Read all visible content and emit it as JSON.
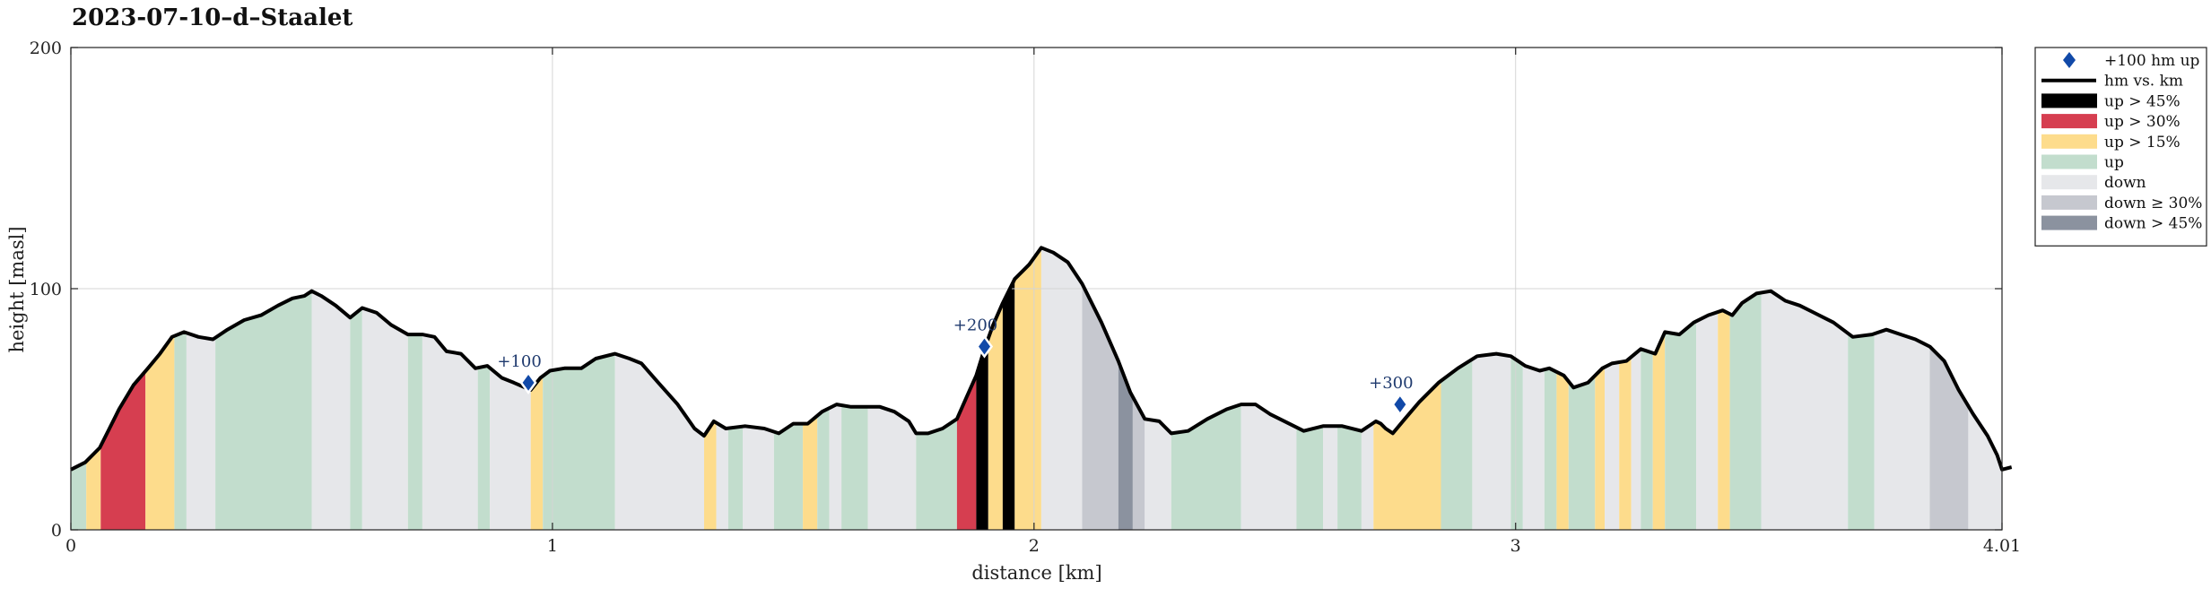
{
  "chart_data": {
    "type": "area",
    "title": "2023-07-10–d–Staalet",
    "xlabel": "distance [km]",
    "ylabel": "height [masl]",
    "xlim": [
      0,
      4.01
    ],
    "ylim": [
      0,
      200
    ],
    "xticks": [
      {
        "value": 0,
        "label": "0"
      },
      {
        "value": 1,
        "label": "1"
      },
      {
        "value": 2,
        "label": "2"
      },
      {
        "value": 3,
        "label": "3"
      },
      {
        "value": 4.01,
        "label": "4.01"
      }
    ],
    "yticks": [
      {
        "value": 0,
        "label": "0"
      },
      {
        "value": 100,
        "label": "100"
      },
      {
        "value": 200,
        "label": "200"
      }
    ],
    "grid": true,
    "legend_position": "outside-right-top",
    "colors": {
      "up_gt_45": "#000000",
      "up_gt_30": "#d63e50",
      "up_gt_15": "#fddc8c",
      "up": "#c2ddcd",
      "down": "#e6e7ea",
      "down_ge_30": "#c6c8cf",
      "down_gt_45": "#8b929f",
      "line": "#000000",
      "marker": "#1149a8",
      "marker_label": "#1f3a6e"
    },
    "legend": [
      {
        "key": "marker",
        "label": "+100 hm up"
      },
      {
        "key": "line",
        "label": "hm vs. km"
      },
      {
        "key": "up_gt_45",
        "label": "up > 45%"
      },
      {
        "key": "up_gt_30",
        "label": "up > 30%"
      },
      {
        "key": "up_gt_15",
        "label": "up > 15%"
      },
      {
        "key": "up",
        "label": "up"
      },
      {
        "key": "down",
        "label": "down"
      },
      {
        "key": "down_ge_30",
        "label": "down ≥ 30%"
      },
      {
        "key": "down_gt_45",
        "label": "down > 45%"
      }
    ],
    "profile": [
      [
        0.0,
        25
      ],
      [
        0.03,
        28
      ],
      [
        0.06,
        34
      ],
      [
        0.08,
        42
      ],
      [
        0.1,
        50
      ],
      [
        0.13,
        60
      ],
      [
        0.16,
        67
      ],
      [
        0.185,
        73
      ],
      [
        0.21,
        80
      ],
      [
        0.235,
        82
      ],
      [
        0.265,
        80
      ],
      [
        0.295,
        79
      ],
      [
        0.325,
        83
      ],
      [
        0.36,
        87
      ],
      [
        0.395,
        89
      ],
      [
        0.43,
        93
      ],
      [
        0.46,
        96
      ],
      [
        0.485,
        97
      ],
      [
        0.5,
        99
      ],
      [
        0.52,
        97
      ],
      [
        0.55,
        93
      ],
      [
        0.58,
        88
      ],
      [
        0.605,
        92
      ],
      [
        0.635,
        90
      ],
      [
        0.665,
        85
      ],
      [
        0.7,
        81
      ],
      [
        0.73,
        81
      ],
      [
        0.755,
        80
      ],
      [
        0.78,
        74
      ],
      [
        0.81,
        73
      ],
      [
        0.84,
        67
      ],
      [
        0.865,
        68
      ],
      [
        0.895,
        63
      ],
      [
        0.92,
        61
      ],
      [
        0.955,
        58
      ],
      [
        0.975,
        63
      ],
      [
        0.995,
        66
      ],
      [
        1.025,
        67
      ],
      [
        1.06,
        67
      ],
      [
        1.09,
        71
      ],
      [
        1.13,
        73
      ],
      [
        1.16,
        71
      ],
      [
        1.185,
        69
      ],
      [
        1.22,
        61
      ],
      [
        1.26,
        52
      ],
      [
        1.295,
        42
      ],
      [
        1.315,
        39
      ],
      [
        1.335,
        45
      ],
      [
        1.36,
        42
      ],
      [
        1.4,
        43
      ],
      [
        1.44,
        42
      ],
      [
        1.47,
        40
      ],
      [
        1.5,
        44
      ],
      [
        1.53,
        44
      ],
      [
        1.56,
        49
      ],
      [
        1.59,
        52
      ],
      [
        1.62,
        51
      ],
      [
        1.65,
        51
      ],
      [
        1.68,
        51
      ],
      [
        1.71,
        49
      ],
      [
        1.74,
        45
      ],
      [
        1.755,
        40
      ],
      [
        1.78,
        40
      ],
      [
        1.81,
        42
      ],
      [
        1.84,
        46
      ],
      [
        1.86,
        55
      ],
      [
        1.88,
        64
      ],
      [
        1.897,
        75
      ],
      [
        1.915,
        85
      ],
      [
        1.935,
        94
      ],
      [
        1.96,
        104
      ],
      [
        1.99,
        110
      ],
      [
        2.015,
        117
      ],
      [
        2.04,
        115
      ],
      [
        2.07,
        111
      ],
      [
        2.1,
        102
      ],
      [
        2.14,
        86
      ],
      [
        2.175,
        70
      ],
      [
        2.2,
        57
      ],
      [
        2.23,
        46
      ],
      [
        2.26,
        45
      ],
      [
        2.285,
        40
      ],
      [
        2.32,
        41
      ],
      [
        2.36,
        46
      ],
      [
        2.4,
        50
      ],
      [
        2.43,
        52
      ],
      [
        2.46,
        52
      ],
      [
        2.49,
        48
      ],
      [
        2.52,
        45
      ],
      [
        2.56,
        41
      ],
      [
        2.6,
        43
      ],
      [
        2.64,
        43
      ],
      [
        2.68,
        41
      ],
      [
        2.71,
        45
      ],
      [
        2.72,
        44
      ],
      [
        2.73,
        42
      ],
      [
        2.745,
        40
      ],
      [
        2.77,
        46
      ],
      [
        2.8,
        53
      ],
      [
        2.84,
        61
      ],
      [
        2.88,
        67
      ],
      [
        2.92,
        72
      ],
      [
        2.96,
        73
      ],
      [
        2.99,
        72
      ],
      [
        3.02,
        68
      ],
      [
        3.05,
        66
      ],
      [
        3.07,
        67
      ],
      [
        3.1,
        64
      ],
      [
        3.12,
        59
      ],
      [
        3.15,
        61
      ],
      [
        3.18,
        67
      ],
      [
        3.2,
        69
      ],
      [
        3.23,
        70
      ],
      [
        3.26,
        75
      ],
      [
        3.29,
        73
      ],
      [
        3.31,
        82
      ],
      [
        3.34,
        81
      ],
      [
        3.37,
        86
      ],
      [
        3.4,
        89
      ],
      [
        3.43,
        91
      ],
      [
        3.45,
        89
      ],
      [
        3.47,
        94
      ],
      [
        3.5,
        98
      ],
      [
        3.53,
        99
      ],
      [
        3.56,
        95
      ],
      [
        3.59,
        93
      ],
      [
        3.62,
        90
      ],
      [
        3.66,
        86
      ],
      [
        3.7,
        80
      ],
      [
        3.74,
        81
      ],
      [
        3.77,
        83
      ],
      [
        3.8,
        81
      ],
      [
        3.83,
        79
      ],
      [
        3.86,
        76
      ],
      [
        3.89,
        70
      ],
      [
        3.92,
        58
      ],
      [
        3.95,
        48
      ],
      [
        3.98,
        39
      ],
      [
        4.0,
        31
      ],
      [
        4.03,
        26
      ],
      [
        4.01,
        25
      ]
    ],
    "segments": [
      {
        "x0": 0.0,
        "x1": 0.032,
        "cat": "up"
      },
      {
        "x0": 0.032,
        "x1": 0.062,
        "cat": "up_gt_15"
      },
      {
        "x0": 0.062,
        "x1": 0.155,
        "cat": "up_gt_30"
      },
      {
        "x0": 0.155,
        "x1": 0.215,
        "cat": "up_gt_15"
      },
      {
        "x0": 0.215,
        "x1": 0.24,
        "cat": "up"
      },
      {
        "x0": 0.24,
        "x1": 0.3,
        "cat": "down"
      },
      {
        "x0": 0.3,
        "x1": 0.5,
        "cat": "up"
      },
      {
        "x0": 0.5,
        "x1": 0.58,
        "cat": "down"
      },
      {
        "x0": 0.58,
        "x1": 0.605,
        "cat": "up"
      },
      {
        "x0": 0.605,
        "x1": 0.7,
        "cat": "down"
      },
      {
        "x0": 0.7,
        "x1": 0.73,
        "cat": "up"
      },
      {
        "x0": 0.73,
        "x1": 0.845,
        "cat": "down"
      },
      {
        "x0": 0.845,
        "x1": 0.87,
        "cat": "up"
      },
      {
        "x0": 0.87,
        "x1": 0.955,
        "cat": "down"
      },
      {
        "x0": 0.955,
        "x1": 0.98,
        "cat": "up_gt_15"
      },
      {
        "x0": 0.98,
        "x1": 1.13,
        "cat": "up"
      },
      {
        "x0": 1.13,
        "x1": 1.315,
        "cat": "down"
      },
      {
        "x0": 1.315,
        "x1": 1.34,
        "cat": "up_gt_15"
      },
      {
        "x0": 1.34,
        "x1": 1.365,
        "cat": "down"
      },
      {
        "x0": 1.365,
        "x1": 1.395,
        "cat": "up"
      },
      {
        "x0": 1.395,
        "x1": 1.46,
        "cat": "down"
      },
      {
        "x0": 1.46,
        "x1": 1.52,
        "cat": "up"
      },
      {
        "x0": 1.52,
        "x1": 1.55,
        "cat": "up_gt_15"
      },
      {
        "x0": 1.55,
        "x1": 1.575,
        "cat": "up"
      },
      {
        "x0": 1.575,
        "x1": 1.6,
        "cat": "down"
      },
      {
        "x0": 1.6,
        "x1": 1.655,
        "cat": "up"
      },
      {
        "x0": 1.655,
        "x1": 1.755,
        "cat": "down"
      },
      {
        "x0": 1.755,
        "x1": 1.84,
        "cat": "up"
      },
      {
        "x0": 1.84,
        "x1": 1.88,
        "cat": "up_gt_30"
      },
      {
        "x0": 1.88,
        "x1": 1.905,
        "cat": "up_gt_45"
      },
      {
        "x0": 1.905,
        "x1": 1.935,
        "cat": "up_gt_15"
      },
      {
        "x0": 1.935,
        "x1": 1.96,
        "cat": "up_gt_45"
      },
      {
        "x0": 1.96,
        "x1": 2.015,
        "cat": "up_gt_15"
      },
      {
        "x0": 2.015,
        "x1": 2.1,
        "cat": "down"
      },
      {
        "x0": 2.1,
        "x1": 2.175,
        "cat": "down_ge_30"
      },
      {
        "x0": 2.175,
        "x1": 2.205,
        "cat": "down_gt_45"
      },
      {
        "x0": 2.205,
        "x1": 2.23,
        "cat": "down_ge_30"
      },
      {
        "x0": 2.23,
        "x1": 2.285,
        "cat": "down"
      },
      {
        "x0": 2.285,
        "x1": 2.43,
        "cat": "up"
      },
      {
        "x0": 2.43,
        "x1": 2.545,
        "cat": "down"
      },
      {
        "x0": 2.545,
        "x1": 2.6,
        "cat": "up"
      },
      {
        "x0": 2.6,
        "x1": 2.63,
        "cat": "down"
      },
      {
        "x0": 2.63,
        "x1": 2.68,
        "cat": "up"
      },
      {
        "x0": 2.68,
        "x1": 2.705,
        "cat": "down"
      },
      {
        "x0": 2.705,
        "x1": 2.845,
        "cat": "up_gt_15"
      },
      {
        "x0": 2.845,
        "x1": 2.91,
        "cat": "up"
      },
      {
        "x0": 2.91,
        "x1": 2.99,
        "cat": "down"
      },
      {
        "x0": 2.99,
        "x1": 3.015,
        "cat": "up"
      },
      {
        "x0": 3.015,
        "x1": 3.06,
        "cat": "down"
      },
      {
        "x0": 3.06,
        "x1": 3.085,
        "cat": "up"
      },
      {
        "x0": 3.085,
        "x1": 3.11,
        "cat": "up_gt_15"
      },
      {
        "x0": 3.11,
        "x1": 3.165,
        "cat": "up"
      },
      {
        "x0": 3.165,
        "x1": 3.185,
        "cat": "up_gt_15"
      },
      {
        "x0": 3.185,
        "x1": 3.215,
        "cat": "down"
      },
      {
        "x0": 3.215,
        "x1": 3.24,
        "cat": "up_gt_15"
      },
      {
        "x0": 3.24,
        "x1": 3.26,
        "cat": "down"
      },
      {
        "x0": 3.26,
        "x1": 3.285,
        "cat": "up"
      },
      {
        "x0": 3.285,
        "x1": 3.31,
        "cat": "up_gt_15"
      },
      {
        "x0": 3.31,
        "x1": 3.375,
        "cat": "up"
      },
      {
        "x0": 3.375,
        "x1": 3.42,
        "cat": "down"
      },
      {
        "x0": 3.42,
        "x1": 3.445,
        "cat": "up_gt_15"
      },
      {
        "x0": 3.445,
        "x1": 3.51,
        "cat": "up"
      },
      {
        "x0": 3.51,
        "x1": 3.69,
        "cat": "down"
      },
      {
        "x0": 3.69,
        "x1": 3.745,
        "cat": "up"
      },
      {
        "x0": 3.745,
        "x1": 3.86,
        "cat": "down"
      },
      {
        "x0": 3.86,
        "x1": 3.94,
        "cat": "down_ge_30"
      },
      {
        "x0": 3.94,
        "x1": 4.01,
        "cat": "down"
      }
    ],
    "markers": [
      {
        "x": 0.95,
        "y": 61,
        "label": "+100"
      },
      {
        "x": 1.897,
        "y": 76,
        "label": "+200"
      },
      {
        "x": 2.76,
        "y": 52,
        "label": "+300"
      }
    ]
  }
}
